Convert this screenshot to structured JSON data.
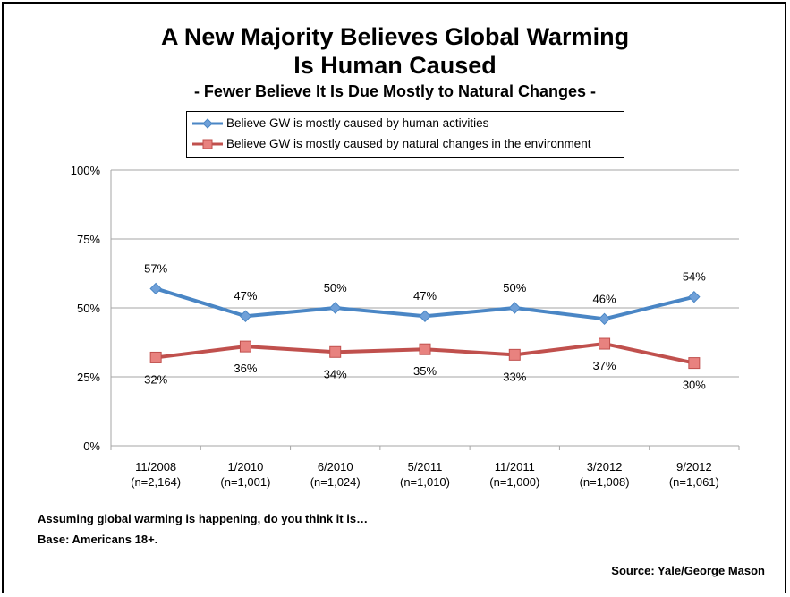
{
  "chart_data": {
    "type": "line",
    "title": "A New Majority Believes Global Warming Is Human Caused",
    "title_lines": [
      "A New Majority Believes Global Warming",
      "Is Human Caused"
    ],
    "subtitle": "- Fewer Believe It Is Due Mostly to Natural Changes -",
    "categories": [
      "11/2008",
      "1/2010",
      "6/2010",
      "5/2011",
      "11/2011",
      "3/2012",
      "9/2012"
    ],
    "category_samples": [
      "(n=2,164)",
      "(n=1,001)",
      "(n=1,024)",
      "(n=1,010)",
      "(n=1,000)",
      "(n=1,008)",
      "(n=1,061)"
    ],
    "series": [
      {
        "name": "Believe GW is mostly caused by human activities",
        "color": "#4a86c5",
        "marker": "diamond",
        "label_position": "above",
        "values": [
          57,
          47,
          50,
          47,
          50,
          46,
          54
        ]
      },
      {
        "name": "Believe GW is mostly caused by natural changes in the environment",
        "color": "#c0504d",
        "marker_fill": "#e8827f",
        "marker": "square",
        "label_position": "below",
        "values": [
          32,
          36,
          34,
          35,
          33,
          37,
          30
        ]
      }
    ],
    "ylim": [
      0,
      100
    ],
    "yticks": [
      0,
      25,
      50,
      75,
      100
    ],
    "ytick_labels": [
      "0%",
      "25%",
      "50%",
      "75%",
      "100%"
    ],
    "value_suffix": "%",
    "grid": true,
    "legend_position": "top-center",
    "xlabel": "",
    "ylabel": ""
  },
  "notes": {
    "question": "Assuming global warming is happening, do you think it is…",
    "base": "Base: Americans 18+.",
    "source": "Source: Yale/George Mason"
  }
}
